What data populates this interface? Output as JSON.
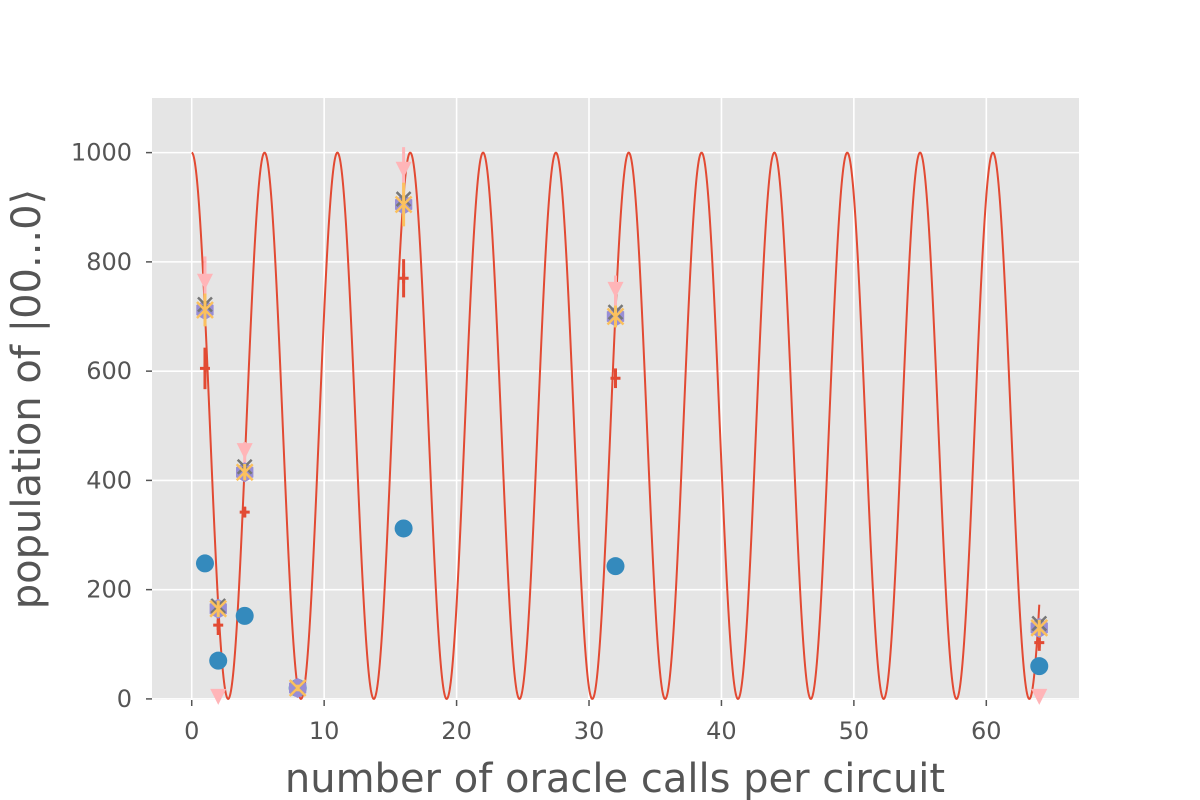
{
  "chart_data": {
    "type": "scatter",
    "title": "",
    "xlabel": "number of oracle calls per circuit",
    "ylabel": "population of |00...0⟩",
    "xlim": [
      -3,
      67
    ],
    "ylim": [
      -2,
      1100
    ],
    "xticks": [
      "0",
      "10",
      "20",
      "30",
      "40",
      "50",
      "60"
    ],
    "yticks": [
      "0",
      "200",
      "400",
      "600",
      "800",
      "1000"
    ],
    "grid": true,
    "background": "#e5e5e5",
    "curve": {
      "color": "#e24a33",
      "amplitude": 1000,
      "period": 5.5,
      "x_range": [
        0,
        64
      ]
    },
    "series": [
      {
        "marker": "circle",
        "color": "#348abd",
        "x": [
          1,
          2,
          4,
          8,
          16,
          32,
          64
        ],
        "y": [
          248,
          70,
          152,
          20,
          312,
          243,
          60
        ]
      },
      {
        "marker": "plus-errorbar",
        "color": "#e24a33",
        "x": [
          1,
          2,
          4,
          8,
          16,
          32,
          64
        ],
        "y": [
          605,
          135,
          342,
          15,
          770,
          587,
          103
        ],
        "yerr": [
          38,
          18,
          10,
          8,
          35,
          18,
          15
        ]
      },
      {
        "marker": "triangle-down",
        "color": "#ffb5b8",
        "x": [
          1,
          2,
          4,
          8,
          16,
          32,
          64
        ],
        "y": [
          760,
          0,
          450,
          15,
          965,
          745,
          0
        ],
        "yerr": [
          50,
          0,
          20,
          8,
          45,
          30,
          0
        ]
      },
      {
        "marker": "hexagon",
        "color": "#988ed5",
        "x": [
          1,
          2,
          4,
          8,
          16,
          32,
          64
        ],
        "y": [
          712,
          165,
          415,
          20,
          905,
          700,
          130
        ]
      },
      {
        "marker": "x",
        "color": "#777777",
        "x": [
          1,
          2,
          4,
          8,
          16,
          32,
          64
        ],
        "y": [
          722,
          170,
          425,
          20,
          915,
          708,
          138
        ]
      },
      {
        "marker": "x-errorbar",
        "color": "#fbc15e",
        "x": [
          1,
          2,
          4,
          8,
          16,
          32,
          64
        ],
        "y": [
          712,
          165,
          415,
          20,
          905,
          700,
          130
        ],
        "yerr": [
          30,
          15,
          15,
          6,
          40,
          20,
          15
        ]
      }
    ]
  }
}
